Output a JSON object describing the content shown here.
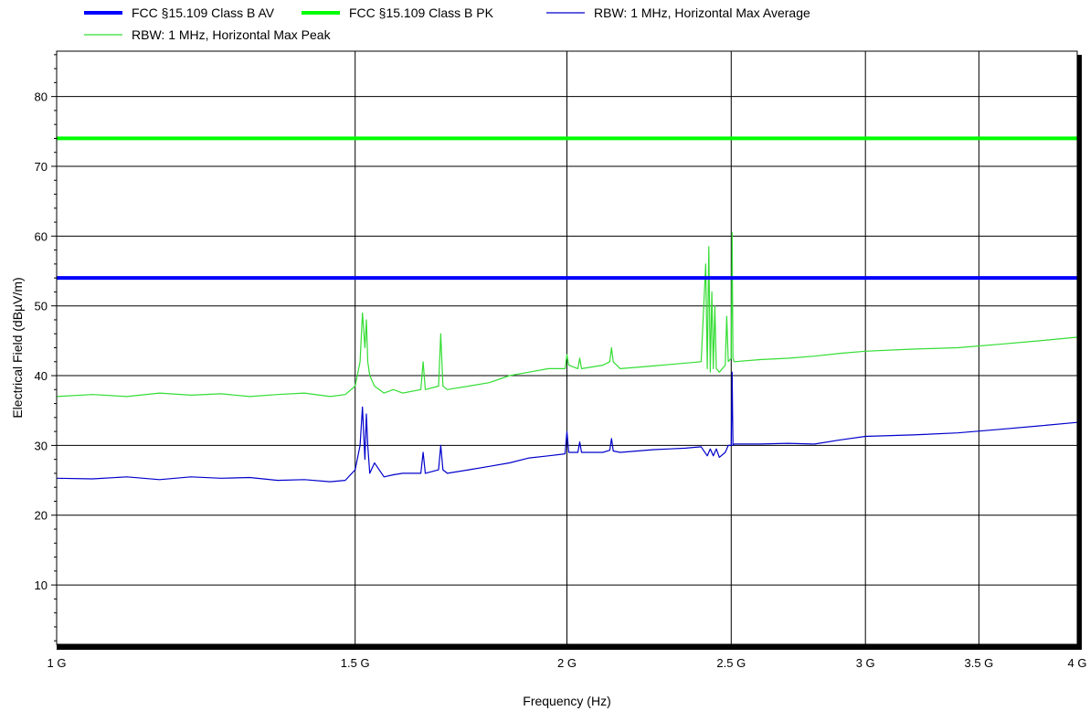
{
  "chart_data": {
    "type": "line",
    "xlabel": "Frequency (Hz)",
    "ylabel": "Electrical Field (dBµV/m)",
    "x_scale": "log",
    "xlim": [
      1000000000,
      4000000000
    ],
    "ylim": [
      1.5,
      86.5
    ],
    "x_ticks": [
      1000000000,
      1500000000,
      2000000000,
      2500000000,
      3000000000,
      3500000000,
      4000000000
    ],
    "x_tick_labels": [
      "1 G",
      "1.5 G",
      "2 G",
      "2.5 G",
      "3 G",
      "3.5 G",
      "4 G"
    ],
    "y_ticks": [
      10,
      20,
      30,
      40,
      50,
      60,
      70,
      80
    ],
    "y_tick_labels": [
      "10",
      "20",
      "30",
      "40",
      "50",
      "60",
      "70",
      "80"
    ],
    "grid": true,
    "legend_position": "top",
    "series": [
      {
        "name": "FCC §15.109 Class B AV",
        "color": "#0000ff",
        "style": "thick",
        "x": [
          1000000000,
          4000000000
        ],
        "y": [
          54,
          54
        ]
      },
      {
        "name": "FCC §15.109 Class B PK",
        "color": "#00ff00",
        "style": "thick",
        "x": [
          1000000000,
          4000000000
        ],
        "y": [
          74,
          74
        ]
      },
      {
        "name": "RBW: 1 MHz, Horizontal Max Average",
        "color": "#0000cc",
        "style": "thin",
        "x": [
          1000000000,
          1050000000,
          1100000000,
          1150000000,
          1200000000,
          1250000000,
          1300000000,
          1350000000,
          1400000000,
          1450000000,
          1480000000,
          1500000000,
          1510000000,
          1515000000,
          1520000000,
          1523000000,
          1526000000,
          1530000000,
          1540000000,
          1560000000,
          1580000000,
          1600000000,
          1640000000,
          1645000000,
          1650000000,
          1680000000,
          1685000000,
          1690000000,
          1700000000,
          1750000000,
          1800000000,
          1850000000,
          1900000000,
          1950000000,
          1995000000,
          2000000000,
          2005000000,
          2030000000,
          2035000000,
          2040000000,
          2100000000,
          2120000000,
          2125000000,
          2130000000,
          2150000000,
          2200000000,
          2250000000,
          2300000000,
          2350000000,
          2400000000,
          2420000000,
          2430000000,
          2440000000,
          2450000000,
          2460000000,
          2480000000,
          2490000000,
          2500000000,
          2503000000,
          2506000000,
          2510000000,
          2600000000,
          2700000000,
          2800000000,
          2900000000,
          3000000000,
          3200000000,
          3400000000,
          3600000000,
          3800000000,
          4000000000
        ],
        "y": [
          25.3,
          25.2,
          25.5,
          25.1,
          25.5,
          25.3,
          25.4,
          25.0,
          25.1,
          24.8,
          25.0,
          26.5,
          30.0,
          35.5,
          28.0,
          34.5,
          30.0,
          26.0,
          27.5,
          25.5,
          25.8,
          26.0,
          26.0,
          29.0,
          26.0,
          26.5,
          30.0,
          26.5,
          26.0,
          26.5,
          27.0,
          27.5,
          28.2,
          28.5,
          28.8,
          32.0,
          29.0,
          29.0,
          30.5,
          29.0,
          29.0,
          29.3,
          31.0,
          29.2,
          29.0,
          29.2,
          29.4,
          29.5,
          29.6,
          29.8,
          28.5,
          29.5,
          28.5,
          29.5,
          28.3,
          29.0,
          30.0,
          30.0,
          40.5,
          30.0,
          30.2,
          30.2,
          30.3,
          30.2,
          30.8,
          31.3,
          31.5,
          31.8,
          32.3,
          32.8,
          33.3
        ]
      },
      {
        "name": "RBW: 1 MHz, Horizontal Max Peak",
        "color": "#33dd33",
        "style": "thin",
        "x": [
          1000000000,
          1050000000,
          1100000000,
          1150000000,
          1200000000,
          1250000000,
          1300000000,
          1350000000,
          1400000000,
          1450000000,
          1480000000,
          1500000000,
          1510000000,
          1515000000,
          1520000000,
          1523000000,
          1526000000,
          1530000000,
          1540000000,
          1560000000,
          1580000000,
          1600000000,
          1640000000,
          1645000000,
          1650000000,
          1680000000,
          1685000000,
          1690000000,
          1700000000,
          1750000000,
          1800000000,
          1850000000,
          1900000000,
          1950000000,
          1995000000,
          2000000000,
          2005000000,
          2030000000,
          2035000000,
          2040000000,
          2100000000,
          2120000000,
          2125000000,
          2130000000,
          2150000000,
          2200000000,
          2250000000,
          2300000000,
          2350000000,
          2400000000,
          2415000000,
          2420000000,
          2425000000,
          2430000000,
          2435000000,
          2440000000,
          2445000000,
          2450000000,
          2460000000,
          2480000000,
          2485000000,
          2490000000,
          2500000000,
          2503000000,
          2506000000,
          2510000000,
          2600000000,
          2700000000,
          2800000000,
          2900000000,
          3000000000,
          3200000000,
          3400000000,
          3600000000,
          3800000000,
          4000000000
        ],
        "y": [
          37.0,
          37.3,
          37.0,
          37.5,
          37.2,
          37.4,
          37.0,
          37.3,
          37.5,
          37.0,
          37.3,
          38.5,
          42.0,
          49.0,
          44.0,
          48.0,
          42.0,
          40.0,
          38.5,
          37.5,
          38.0,
          37.5,
          38.0,
          42.0,
          38.0,
          38.5,
          46.0,
          38.5,
          38.0,
          38.5,
          39.0,
          40.0,
          40.5,
          41.0,
          41.0,
          43.0,
          41.5,
          41.0,
          42.5,
          41.0,
          41.5,
          42.0,
          44.0,
          42.0,
          41.0,
          41.2,
          41.4,
          41.6,
          41.8,
          42.0,
          56.0,
          41.0,
          58.5,
          40.5,
          52.0,
          41.0,
          50.0,
          41.0,
          40.5,
          41.5,
          48.5,
          42.0,
          42.5,
          60.5,
          42.5,
          42.0,
          42.3,
          42.5,
          42.8,
          43.2,
          43.5,
          43.8,
          44.0,
          44.5,
          45.0,
          45.5
        ]
      }
    ]
  }
}
